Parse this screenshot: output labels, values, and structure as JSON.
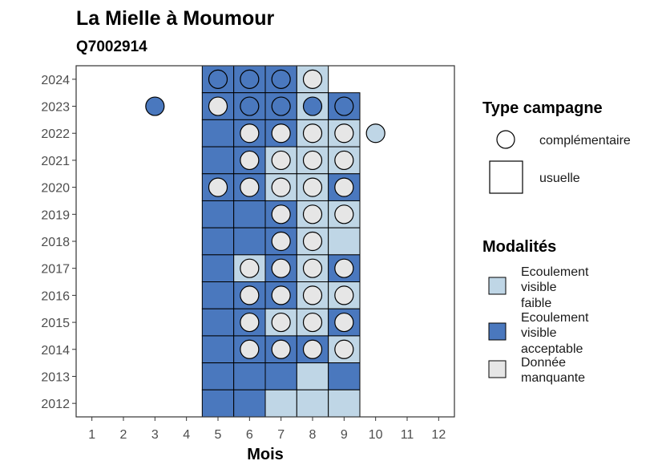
{
  "chart_data": {
    "type": "heatmap",
    "title": "La Mielle à Moumour",
    "subtitle": "Q7002914",
    "xlabel": "Mois",
    "ylabel": "",
    "x_ticks": [
      1,
      2,
      3,
      4,
      5,
      6,
      7,
      8,
      9,
      10,
      11,
      12
    ],
    "y_ticks": [
      2024,
      2023,
      2022,
      2021,
      2020,
      2019,
      2018,
      2017,
      2016,
      2015,
      2014,
      2013,
      2012
    ],
    "xlim": [
      0.5,
      12.5
    ],
    "ylim": [
      2011.5,
      2024.5
    ],
    "grid": false,
    "colors": {
      "faible": "#bfd6e6",
      "acceptable": "#4a78be",
      "manquante": "#e6e6e6",
      "border": "#000000"
    },
    "legend_type": {
      "title": "Type campagne",
      "items": [
        {
          "key": "complementaire",
          "label": "complémentaire",
          "shape": "circle"
        },
        {
          "key": "usuelle",
          "label": "usuelle",
          "shape": "square"
        }
      ]
    },
    "legend_modalites": {
      "title": "Modalités",
      "items": [
        {
          "key": "faible",
          "label_lines": [
            "Ecoulement",
            "visible",
            "faible"
          ]
        },
        {
          "key": "acceptable",
          "label_lines": [
            "Ecoulement",
            "visible",
            "acceptable"
          ]
        },
        {
          "key": "manquante",
          "label_lines": [
            "Donnée",
            "manquante"
          ]
        }
      ]
    },
    "tiles": [
      {
        "year": 2024,
        "month": 5,
        "modalite": "acceptable"
      },
      {
        "year": 2024,
        "month": 6,
        "modalite": "acceptable"
      },
      {
        "year": 2024,
        "month": 7,
        "modalite": "acceptable"
      },
      {
        "year": 2024,
        "month": 8,
        "modalite": "faible"
      },
      {
        "year": 2023,
        "month": 5,
        "modalite": "acceptable"
      },
      {
        "year": 2023,
        "month": 6,
        "modalite": "acceptable"
      },
      {
        "year": 2023,
        "month": 7,
        "modalite": "acceptable"
      },
      {
        "year": 2023,
        "month": 8,
        "modalite": "faible"
      },
      {
        "year": 2023,
        "month": 9,
        "modalite": "acceptable"
      },
      {
        "year": 2022,
        "month": 5,
        "modalite": "acceptable"
      },
      {
        "year": 2022,
        "month": 6,
        "modalite": "acceptable"
      },
      {
        "year": 2022,
        "month": 7,
        "modalite": "acceptable"
      },
      {
        "year": 2022,
        "month": 8,
        "modalite": "faible"
      },
      {
        "year": 2022,
        "month": 9,
        "modalite": "faible"
      },
      {
        "year": 2021,
        "month": 5,
        "modalite": "acceptable"
      },
      {
        "year": 2021,
        "month": 6,
        "modalite": "acceptable"
      },
      {
        "year": 2021,
        "month": 7,
        "modalite": "faible"
      },
      {
        "year": 2021,
        "month": 8,
        "modalite": "faible"
      },
      {
        "year": 2021,
        "month": 9,
        "modalite": "faible"
      },
      {
        "year": 2020,
        "month": 5,
        "modalite": "acceptable"
      },
      {
        "year": 2020,
        "month": 6,
        "modalite": "acceptable"
      },
      {
        "year": 2020,
        "month": 7,
        "modalite": "faible"
      },
      {
        "year": 2020,
        "month": 8,
        "modalite": "faible"
      },
      {
        "year": 2020,
        "month": 9,
        "modalite": "acceptable"
      },
      {
        "year": 2019,
        "month": 5,
        "modalite": "acceptable"
      },
      {
        "year": 2019,
        "month": 6,
        "modalite": "acceptable"
      },
      {
        "year": 2019,
        "month": 7,
        "modalite": "acceptable"
      },
      {
        "year": 2019,
        "month": 8,
        "modalite": "faible"
      },
      {
        "year": 2019,
        "month": 9,
        "modalite": "faible"
      },
      {
        "year": 2018,
        "month": 5,
        "modalite": "acceptable"
      },
      {
        "year": 2018,
        "month": 6,
        "modalite": "acceptable"
      },
      {
        "year": 2018,
        "month": 7,
        "modalite": "acceptable"
      },
      {
        "year": 2018,
        "month": 8,
        "modalite": "faible"
      },
      {
        "year": 2018,
        "month": 9,
        "modalite": "faible"
      },
      {
        "year": 2017,
        "month": 5,
        "modalite": "acceptable"
      },
      {
        "year": 2017,
        "month": 6,
        "modalite": "faible"
      },
      {
        "year": 2017,
        "month": 7,
        "modalite": "acceptable"
      },
      {
        "year": 2017,
        "month": 8,
        "modalite": "faible"
      },
      {
        "year": 2017,
        "month": 9,
        "modalite": "acceptable"
      },
      {
        "year": 2016,
        "month": 5,
        "modalite": "acceptable"
      },
      {
        "year": 2016,
        "month": 6,
        "modalite": "acceptable"
      },
      {
        "year": 2016,
        "month": 7,
        "modalite": "acceptable"
      },
      {
        "year": 2016,
        "month": 8,
        "modalite": "faible"
      },
      {
        "year": 2016,
        "month": 9,
        "modalite": "faible"
      },
      {
        "year": 2015,
        "month": 5,
        "modalite": "acceptable"
      },
      {
        "year": 2015,
        "month": 6,
        "modalite": "acceptable"
      },
      {
        "year": 2015,
        "month": 7,
        "modalite": "faible"
      },
      {
        "year": 2015,
        "month": 8,
        "modalite": "faible"
      },
      {
        "year": 2015,
        "month": 9,
        "modalite": "acceptable"
      },
      {
        "year": 2014,
        "month": 5,
        "modalite": "acceptable"
      },
      {
        "year": 2014,
        "month": 6,
        "modalite": "acceptable"
      },
      {
        "year": 2014,
        "month": 7,
        "modalite": "acceptable"
      },
      {
        "year": 2014,
        "month": 8,
        "modalite": "acceptable"
      },
      {
        "year": 2014,
        "month": 9,
        "modalite": "faible"
      },
      {
        "year": 2013,
        "month": 5,
        "modalite": "acceptable"
      },
      {
        "year": 2013,
        "month": 6,
        "modalite": "acceptable"
      },
      {
        "year": 2013,
        "month": 7,
        "modalite": "acceptable"
      },
      {
        "year": 2013,
        "month": 8,
        "modalite": "faible"
      },
      {
        "year": 2013,
        "month": 9,
        "modalite": "acceptable"
      },
      {
        "year": 2012,
        "month": 5,
        "modalite": "acceptable"
      },
      {
        "year": 2012,
        "month": 6,
        "modalite": "acceptable"
      },
      {
        "year": 2012,
        "month": 7,
        "modalite": "faible"
      },
      {
        "year": 2012,
        "month": 8,
        "modalite": "faible"
      },
      {
        "year": 2012,
        "month": 9,
        "modalite": "faible"
      }
    ],
    "points": [
      {
        "year": 2024,
        "month": 5,
        "modalite": "acceptable"
      },
      {
        "year": 2024,
        "month": 6,
        "modalite": "acceptable"
      },
      {
        "year": 2024,
        "month": 7,
        "modalite": "acceptable"
      },
      {
        "year": 2024,
        "month": 8,
        "modalite": "manquante"
      },
      {
        "year": 2023,
        "month": 3,
        "modalite": "acceptable"
      },
      {
        "year": 2023,
        "month": 5,
        "modalite": "manquante"
      },
      {
        "year": 2023,
        "month": 6,
        "modalite": "acceptable"
      },
      {
        "year": 2023,
        "month": 7,
        "modalite": "acceptable"
      },
      {
        "year": 2023,
        "month": 8,
        "modalite": "acceptable"
      },
      {
        "year": 2023,
        "month": 9,
        "modalite": "acceptable"
      },
      {
        "year": 2022,
        "month": 6,
        "modalite": "manquante"
      },
      {
        "year": 2022,
        "month": 7,
        "modalite": "manquante"
      },
      {
        "year": 2022,
        "month": 8,
        "modalite": "manquante"
      },
      {
        "year": 2022,
        "month": 9,
        "modalite": "manquante"
      },
      {
        "year": 2022,
        "month": 10,
        "modalite": "faible"
      },
      {
        "year": 2021,
        "month": 6,
        "modalite": "manquante"
      },
      {
        "year": 2021,
        "month": 7,
        "modalite": "manquante"
      },
      {
        "year": 2021,
        "month": 8,
        "modalite": "manquante"
      },
      {
        "year": 2021,
        "month": 9,
        "modalite": "manquante"
      },
      {
        "year": 2020,
        "month": 5,
        "modalite": "manquante"
      },
      {
        "year": 2020,
        "month": 6,
        "modalite": "manquante"
      },
      {
        "year": 2020,
        "month": 7,
        "modalite": "manquante"
      },
      {
        "year": 2020,
        "month": 8,
        "modalite": "manquante"
      },
      {
        "year": 2020,
        "month": 9,
        "modalite": "manquante"
      },
      {
        "year": 2019,
        "month": 7,
        "modalite": "manquante"
      },
      {
        "year": 2019,
        "month": 8,
        "modalite": "manquante"
      },
      {
        "year": 2019,
        "month": 9,
        "modalite": "manquante"
      },
      {
        "year": 2018,
        "month": 7,
        "modalite": "manquante"
      },
      {
        "year": 2018,
        "month": 8,
        "modalite": "manquante"
      },
      {
        "year": 2017,
        "month": 6,
        "modalite": "manquante"
      },
      {
        "year": 2017,
        "month": 7,
        "modalite": "manquante"
      },
      {
        "year": 2017,
        "month": 8,
        "modalite": "manquante"
      },
      {
        "year": 2017,
        "month": 9,
        "modalite": "manquante"
      },
      {
        "year": 2016,
        "month": 6,
        "modalite": "manquante"
      },
      {
        "year": 2016,
        "month": 7,
        "modalite": "manquante"
      },
      {
        "year": 2016,
        "month": 8,
        "modalite": "manquante"
      },
      {
        "year": 2016,
        "month": 9,
        "modalite": "manquante"
      },
      {
        "year": 2015,
        "month": 6,
        "modalite": "manquante"
      },
      {
        "year": 2015,
        "month": 7,
        "modalite": "manquante"
      },
      {
        "year": 2015,
        "month": 8,
        "modalite": "manquante"
      },
      {
        "year": 2015,
        "month": 9,
        "modalite": "manquante"
      },
      {
        "year": 2014,
        "month": 6,
        "modalite": "manquante"
      },
      {
        "year": 2014,
        "month": 7,
        "modalite": "manquante"
      },
      {
        "year": 2014,
        "month": 8,
        "modalite": "manquante"
      },
      {
        "year": 2014,
        "month": 9,
        "modalite": "manquante"
      }
    ]
  }
}
